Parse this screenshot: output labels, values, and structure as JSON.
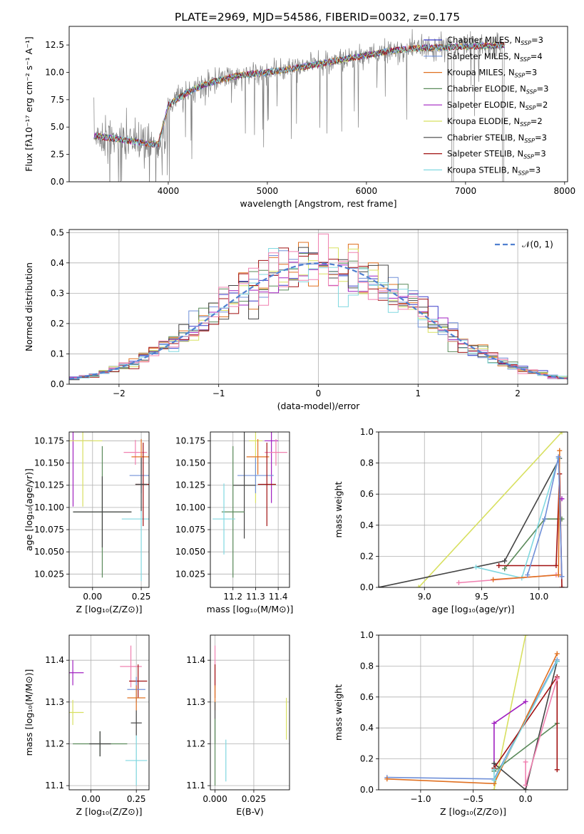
{
  "colors": {
    "chabrier_miles": "#3a3ac8",
    "salpeter_miles": "#7090d8",
    "kroupa_miles": "#e07020",
    "chabrier_elodie": "#5a8a5a",
    "salpeter_elodie": "#a020c0",
    "kroupa_elodie": "#d8e060",
    "chabrier_stelib": "#444444",
    "salpeter_stelib": "#a01010",
    "kroupa_stelib": "#80d8e0",
    "pink": "#f080b0",
    "data": "#808080",
    "normal": "#5080d0",
    "grid": "#b0b0b0"
  },
  "title": "PLATE=2969, MJD=54586, FIBERID=0032, z=0.175",
  "legend": [
    {
      "label": "Chabrier MILES, N",
      "sub": "SSP",
      "tail": "=3",
      "color": "chabrier_miles"
    },
    {
      "label": "Salpeter MILES, N",
      "sub": "SSP",
      "tail": "=4",
      "color": "salpeter_miles"
    },
    {
      "label": "Kroupa MILES, N",
      "sub": "SSP",
      "tail": "=3",
      "color": "kroupa_miles"
    },
    {
      "label": "Chabrier ELODIE, N",
      "sub": "SSP",
      "tail": "=3",
      "color": "chabrier_elodie"
    },
    {
      "label": "Salpeter ELODIE, N",
      "sub": "SSP",
      "tail": "=2",
      "color": "salpeter_elodie"
    },
    {
      "label": "Kroupa ELODIE, N",
      "sub": "SSP",
      "tail": "=2",
      "color": "kroupa_elodie"
    },
    {
      "label": "Chabrier STELIB, N",
      "sub": "SSP",
      "tail": "=3",
      "color": "chabrier_stelib"
    },
    {
      "label": "Salpeter STELIB, N",
      "sub": "SSP",
      "tail": "=3",
      "color": "salpeter_stelib"
    },
    {
      "label": "Kroupa STELIB, N",
      "sub": "SSP",
      "tail": "=3",
      "color": "kroupa_stelib"
    }
  ],
  "chart_data": [
    {
      "id": "spectrum",
      "type": "line",
      "xlabel": "wavelength [Angstrom, rest frame]",
      "ylabel": "Flux [fλ10⁻¹⁷ erg cm⁻² s⁻¹ A⁻¹]",
      "xlim": [
        3000,
        8030
      ],
      "ylim": [
        0,
        14.2
      ],
      "xticks": [
        4000,
        5000,
        6000,
        7000,
        8000
      ],
      "yticks": [
        0.0,
        2.5,
        5.0,
        7.5,
        10.0,
        12.5
      ],
      "ytick_labels": [
        "0.0",
        "2.5",
        "5.0",
        "7.5",
        "10.0",
        "12.5"
      ],
      "continuum": {
        "x": [
          3250,
          3500,
          3700,
          3900,
          4000,
          4200,
          4400,
          4700,
          5000,
          5300,
          5600,
          5900,
          6200,
          6500,
          6800,
          7100,
          7400
        ],
        "y": [
          4.2,
          3.9,
          3.6,
          3.4,
          7.0,
          8.2,
          9.0,
          9.7,
          10.0,
          10.4,
          10.9,
          11.4,
          11.9,
          12.2,
          12.3,
          12.4,
          12.5
        ]
      },
      "grid": false,
      "legend_position": "upper right"
    },
    {
      "id": "residuals",
      "type": "step",
      "xlabel": "(data-model)/error",
      "ylabel": "Normed distribution",
      "xlim": [
        -2.5,
        2.5
      ],
      "ylim": [
        0,
        0.51
      ],
      "xticks": [
        -2,
        -1,
        0,
        1,
        2
      ],
      "xtick_labels": [
        "−2",
        "−1",
        "0",
        "1",
        "2"
      ],
      "yticks": [
        0.0,
        0.1,
        0.2,
        0.3,
        0.4,
        0.5
      ],
      "ytick_labels": [
        "0.0",
        "0.1",
        "0.2",
        "0.3",
        "0.4",
        "0.5"
      ],
      "reference": {
        "label": "𝒩(0, 1)",
        "mean": 0,
        "sigma": 1
      },
      "grid": true,
      "legend_position": "upper right"
    },
    {
      "id": "age_vs_Z",
      "type": "errorbar",
      "xlabel": "Z [log₁₀(Z/Z⊙)]",
      "ylabel": "age [log₁₀(age/yr)]",
      "xlim": [
        -0.12,
        0.29
      ],
      "ylim": [
        10.01,
        10.185
      ],
      "xticks": [
        0.0,
        0.25
      ],
      "xtick_labels": [
        "0.00",
        "0.25"
      ],
      "yticks": [
        10.025,
        10.05,
        10.075,
        10.1,
        10.125,
        10.15,
        10.175
      ],
      "ytick_labels": [
        "10.025",
        "10.050",
        "10.075",
        "10.100",
        "10.125",
        "10.150",
        "10.175"
      ],
      "points": [
        {
          "color": "salpeter_elodie",
          "x": -0.1,
          "xerr": 0.1,
          "y": 10.175,
          "yerr": 0.074
        },
        {
          "color": "kroupa_elodie",
          "x": -0.05,
          "xerr": 0.1,
          "y": 10.175,
          "yerr": 0.074
        },
        {
          "color": "chabrier_elodie",
          "x": 0.05,
          "xerr": 0.15,
          "y": 10.095,
          "yerr": 0.074
        },
        {
          "color": "chabrier_stelib",
          "x": 0.05,
          "xerr": 0.15,
          "y": 10.095,
          "yerr": 0.04
        },
        {
          "color": "kroupa_stelib",
          "x": 0.25,
          "xerr": 0.1,
          "y": 10.087,
          "yerr": 0.07
        },
        {
          "color": "pink",
          "x": 0.22,
          "xerr": 0.06,
          "y": 10.162,
          "yerr": 0.014
        },
        {
          "color": "kroupa_miles",
          "x": 0.25,
          "xerr": 0.05,
          "y": 10.157,
          "yerr": 0.02
        },
        {
          "color": "salpeter_miles",
          "x": 0.25,
          "xerr": 0.06,
          "y": 10.136,
          "yerr": 0.02
        },
        {
          "color": "salpeter_stelib",
          "x": 0.26,
          "xerr": 0.04,
          "y": 10.126,
          "yerr": 0.047
        },
        {
          "color": "chabrier_stelib",
          "x": 0.25,
          "xerr": 0.03,
          "y": 10.126,
          "yerr": 0.03
        }
      ]
    },
    {
      "id": "age_vs_mass",
      "type": "errorbar",
      "xlabel": "mass [log₁₀(M/M⊙)]",
      "ylabel": "",
      "xlim": [
        11.1,
        11.45
      ],
      "ylim": [
        10.01,
        10.185
      ],
      "xticks": [
        11.2,
        11.3,
        11.4
      ],
      "xtick_labels": [
        "11.2",
        "11.3",
        "11.4"
      ],
      "yticks": [
        10.025,
        10.05,
        10.075,
        10.1,
        10.125,
        10.15,
        10.175
      ],
      "ytick_labels": [
        "10.025",
        "10.050",
        "10.075",
        "10.100",
        "10.125",
        "10.150",
        "10.175"
      ],
      "points": [
        {
          "color": "kroupa_elodie",
          "x": 11.3,
          "xerr": 0.03,
          "y": 10.175,
          "yerr": 0.07
        },
        {
          "color": "salpeter_elodie",
          "x": 11.37,
          "xerr": 0.03,
          "y": 10.175,
          "yerr": 0.07
        },
        {
          "color": "pink",
          "x": 11.39,
          "xerr": 0.05,
          "y": 10.162,
          "yerr": 0.015
        },
        {
          "color": "kroupa_miles",
          "x": 11.31,
          "xerr": 0.05,
          "y": 10.157,
          "yerr": 0.02
        },
        {
          "color": "salpeter_miles",
          "x": 11.3,
          "xerr": 0.08,
          "y": 10.136,
          "yerr": 0.02
        },
        {
          "color": "chabrier_stelib",
          "x": 11.25,
          "xerr": 0.05,
          "y": 10.125,
          "yerr": 0.06
        },
        {
          "color": "salpeter_stelib",
          "x": 11.35,
          "xerr": 0.04,
          "y": 10.126,
          "yerr": 0.047
        },
        {
          "color": "chabrier_elodie",
          "x": 11.2,
          "xerr": 0.05,
          "y": 10.095,
          "yerr": 0.074
        },
        {
          "color": "kroupa_stelib",
          "x": 11.16,
          "xerr": 0.05,
          "y": 10.087,
          "yerr": 0.04
        }
      ]
    },
    {
      "id": "mass_weight_vs_age",
      "type": "line",
      "xlabel": "age [log₁₀(age/yr)]",
      "ylabel": "mass weight",
      "xlim": [
        8.6,
        10.25
      ],
      "ylim": [
        0,
        1.0
      ],
      "xticks": [
        9.0,
        9.5,
        10.0
      ],
      "xtick_labels": [
        "9.0",
        "9.5",
        "10.0"
      ],
      "yticks": [
        0.0,
        0.2,
        0.4,
        0.6,
        0.8,
        1.0
      ],
      "ytick_labels": [
        "0.0",
        "0.2",
        "0.4",
        "0.6",
        "0.8",
        "1.0"
      ],
      "series": [
        {
          "color": "kroupa_elodie",
          "x": [
            8.95,
            10.2
          ],
          "y": [
            0.0,
            1.0
          ]
        },
        {
          "color": "chabrier_stelib",
          "x": [
            8.6,
            9.7,
            10.18
          ],
          "y": [
            0.0,
            0.17,
            0.83
          ]
        },
        {
          "color": "chabrier_elodie",
          "x": [
            9.7,
            10.05,
            10.2
          ],
          "y": [
            0.12,
            0.44,
            0.44
          ]
        },
        {
          "color": "salpeter_stelib",
          "x": [
            9.65,
            10.15,
            10.18,
            10.2
          ],
          "y": [
            0.14,
            0.14,
            0.73,
            0.0
          ]
        },
        {
          "color": "kroupa_stelib",
          "x": [
            9.45,
            9.85,
            10.17
          ],
          "y": [
            0.13,
            0.06,
            0.83
          ]
        },
        {
          "color": "pink",
          "x": [
            9.3,
            10.15
          ],
          "y": [
            0.03,
            0.08
          ]
        },
        {
          "color": "kroupa_miles",
          "x": [
            9.6,
            10.17,
            10.18
          ],
          "y": [
            0.05,
            0.08,
            0.88
          ]
        },
        {
          "color": "salpeter_miles",
          "x": [
            9.9,
            10.05,
            10.17,
            10.2
          ],
          "y": [
            0.08,
            0.44,
            0.84,
            0.07
          ]
        },
        {
          "color": "salpeter_elodie",
          "x": [
            10.2
          ],
          "y": [
            0.57
          ]
        }
      ]
    },
    {
      "id": "mass_vs_Z",
      "type": "errorbar",
      "xlabel": "Z [log₁₀(Z/Z⊙)]",
      "ylabel": "mass [log₁₀(M/M⊙)]",
      "xlim": [
        -0.12,
        0.32
      ],
      "ylim": [
        11.09,
        11.46
      ],
      "xticks": [
        0.0,
        0.25
      ],
      "xtick_labels": [
        "0.00",
        "0.25"
      ],
      "yticks": [
        11.1,
        11.2,
        11.3,
        11.4
      ],
      "ytick_labels": [
        "11.1",
        "11.2",
        "11.3",
        "11.4"
      ],
      "points": [
        {
          "color": "salpeter_elodie",
          "x": -0.1,
          "xerr": 0.06,
          "y": 11.37,
          "yerr": 0.03
        },
        {
          "color": "kroupa_elodie",
          "x": -0.1,
          "xerr": 0.06,
          "y": 11.275,
          "yerr": 0.03
        },
        {
          "color": "chabrier_elodie",
          "x": 0.05,
          "xerr": 0.15,
          "y": 11.2,
          "yerr": 0.03
        },
        {
          "color": "chabrier_stelib",
          "x": 0.05,
          "xerr": 0.06,
          "y": 11.2,
          "yerr": 0.03
        },
        {
          "color": "pink",
          "x": 0.22,
          "xerr": 0.06,
          "y": 11.385,
          "yerr": 0.05
        },
        {
          "color": "salpeter_stelib",
          "x": 0.26,
          "xerr": 0.05,
          "y": 11.35,
          "yerr": 0.04
        },
        {
          "color": "salpeter_miles",
          "x": 0.25,
          "xerr": 0.05,
          "y": 11.33,
          "yerr": 0.03
        },
        {
          "color": "kroupa_miles",
          "x": 0.25,
          "xerr": 0.05,
          "y": 11.31,
          "yerr": 0.03
        },
        {
          "color": "chabrier_stelib",
          "x": 0.25,
          "xerr": 0.03,
          "y": 11.25,
          "yerr": 0.03
        },
        {
          "color": "kroupa_stelib",
          "x": 0.25,
          "xerr": 0.06,
          "y": 11.16,
          "yerr": 0.06
        }
      ]
    },
    {
      "id": "mass_vs_ebv",
      "type": "errorbar",
      "xlabel": "E(B-V)",
      "ylabel": "",
      "xlim": [
        -0.003,
        0.048
      ],
      "ylim": [
        11.09,
        11.46
      ],
      "xticks": [
        0.0,
        0.025
      ],
      "xtick_labels": [
        "0.000",
        "0.025"
      ],
      "yticks": [
        11.1,
        11.2,
        11.3,
        11.4
      ],
      "ytick_labels": [
        "11.1",
        "11.2",
        "11.3",
        "11.4"
      ],
      "points": [
        {
          "color": "pink",
          "x": 0.0,
          "xerr": 0,
          "y": 11.385,
          "yerr": 0.05
        },
        {
          "color": "salpeter_stelib",
          "x": 0.0,
          "xerr": 0,
          "y": 11.35,
          "yerr": 0.04
        },
        {
          "color": "kroupa_miles",
          "x": 0.0,
          "xerr": 0,
          "y": 11.31,
          "yerr": 0.03
        },
        {
          "color": "chabrier_stelib",
          "x": 0.0,
          "xerr": 0,
          "y": 11.25,
          "yerr": 0.05
        },
        {
          "color": "chabrier_elodie",
          "x": 0.0,
          "xerr": 0,
          "y": 11.18,
          "yerr": 0.08
        },
        {
          "color": "kroupa_stelib",
          "x": 0.007,
          "xerr": 0,
          "y": 11.16,
          "yerr": 0.05
        },
        {
          "color": "kroupa_elodie",
          "x": 0.046,
          "xerr": 0,
          "y": 11.26,
          "yerr": 0.05
        }
      ]
    },
    {
      "id": "mass_weight_vs_Z",
      "type": "line",
      "xlabel": "Z [log₁₀(Z/Z⊙)]",
      "ylabel": "mass weight",
      "xlim": [
        -1.4,
        0.4
      ],
      "ylim": [
        0,
        1.0
      ],
      "xticks": [
        -1.0,
        -0.5,
        0.0
      ],
      "xtick_labels": [
        "−1.0",
        "−0.5",
        "0.0"
      ],
      "yticks": [
        0.0,
        0.2,
        0.4,
        0.6,
        0.8,
        1.0
      ],
      "ytick_labels": [
        "0.0",
        "0.2",
        "0.4",
        "0.6",
        "0.8",
        "1.0"
      ],
      "series": [
        {
          "color": "kroupa_elodie",
          "x": [
            -0.3,
            0.0
          ],
          "y": [
            0.0,
            1.0
          ]
        },
        {
          "color": "salpeter_elodie",
          "x": [
            -0.3,
            -0.3,
            0.0
          ],
          "y": [
            0.13,
            0.43,
            0.57
          ]
        },
        {
          "color": "salpeter_miles",
          "x": [
            -1.32,
            -0.3,
            0.3
          ],
          "y": [
            0.08,
            0.07,
            0.84
          ]
        },
        {
          "color": "kroupa_miles",
          "x": [
            -1.32,
            -0.3,
            0.3
          ],
          "y": [
            0.07,
            0.04,
            0.88
          ]
        },
        {
          "color": "chabrier_stelib",
          "x": [
            -0.3,
            0.0,
            0.3
          ],
          "y": [
            0.17,
            0.0,
            0.83
          ]
        },
        {
          "color": "chabrier_elodie",
          "x": [
            -0.3,
            -0.3,
            0.3
          ],
          "y": [
            0.14,
            0.12,
            0.43
          ]
        },
        {
          "color": "salpeter_stelib",
          "x": [
            -0.3,
            0.3,
            0.3
          ],
          "y": [
            0.14,
            0.73,
            0.13
          ]
        },
        {
          "color": "kroupa_stelib",
          "x": [
            -0.3,
            -0.3,
            0.3
          ],
          "y": [
            0.13,
            0.06,
            0.83
          ]
        },
        {
          "color": "pink",
          "x": [
            0.0,
            0.0,
            0.3
          ],
          "y": [
            0.18,
            0.03,
            0.72
          ]
        }
      ]
    }
  ]
}
